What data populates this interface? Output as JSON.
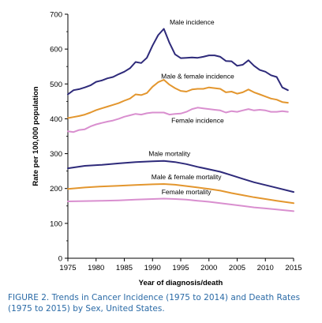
{
  "caption": {
    "figure": "FIGURE 2.",
    "text": "Trends in Cancer Incidence (1975 to 2014) and Death Rates (1975 to 2015) by Sex, United States."
  },
  "chart_data": {
    "type": "line",
    "title": "",
    "xlabel": "Year of diagnosis/death",
    "ylabel": "Rate per 100,000 population",
    "xlim": [
      1975,
      2015
    ],
    "ylim": [
      0,
      700
    ],
    "xticks": [
      1975,
      1980,
      1985,
      1990,
      1995,
      2000,
      2005,
      2010,
      2015
    ],
    "yticks": [
      0,
      100,
      200,
      300,
      400,
      500,
      600,
      700
    ],
    "grid": false,
    "series": [
      {
        "name": "Male incidence",
        "color": "#2e2a7a",
        "x": [
          1975,
          1976,
          1977,
          1978,
          1979,
          1980,
          1981,
          1982,
          1983,
          1984,
          1985,
          1986,
          1987,
          1988,
          1989,
          1990,
          1991,
          1992,
          1993,
          1994,
          1995,
          1996,
          1997,
          1998,
          1999,
          2000,
          2001,
          2002,
          2003,
          2004,
          2005,
          2006,
          2007,
          2008,
          2009,
          2010,
          2011,
          2012,
          2013,
          2014
        ],
        "y": [
          470,
          482,
          485,
          490,
          496,
          506,
          510,
          516,
          520,
          528,
          535,
          545,
          563,
          560,
          575,
          610,
          640,
          658,
          618,
          585,
          574,
          575,
          576,
          575,
          578,
          582,
          582,
          578,
          566,
          565,
          552,
          555,
          568,
          552,
          540,
          535,
          525,
          520,
          490,
          482
        ]
      },
      {
        "name": "Male & female incidence",
        "color": "#e3962e",
        "x": [
          1975,
          1976,
          1977,
          1978,
          1979,
          1980,
          1981,
          1982,
          1983,
          1984,
          1985,
          1986,
          1987,
          1988,
          1989,
          1990,
          1991,
          1992,
          1993,
          1994,
          1995,
          1996,
          1997,
          1998,
          1999,
          2000,
          2001,
          2002,
          2003,
          2004,
          2005,
          2006,
          2007,
          2008,
          2009,
          2010,
          2011,
          2012,
          2013,
          2014
        ],
        "y": [
          402,
          405,
          408,
          412,
          418,
          425,
          430,
          435,
          440,
          445,
          452,
          458,
          470,
          468,
          474,
          492,
          505,
          512,
          498,
          488,
          480,
          478,
          484,
          486,
          486,
          490,
          488,
          486,
          476,
          478,
          472,
          476,
          484,
          476,
          470,
          464,
          458,
          455,
          448,
          446
        ]
      },
      {
        "name": "Female incidence",
        "color": "#d98fcf",
        "x": [
          1975,
          1976,
          1977,
          1978,
          1979,
          1980,
          1981,
          1982,
          1983,
          1984,
          1985,
          1986,
          1987,
          1988,
          1989,
          1990,
          1991,
          1992,
          1993,
          1994,
          1995,
          1996,
          1997,
          1998,
          1999,
          2000,
          2001,
          2002,
          2003,
          2004,
          2005,
          2006,
          2007,
          2008,
          2009,
          2010,
          2011,
          2012,
          2013,
          2014
        ],
        "y": [
          364,
          362,
          368,
          370,
          378,
          384,
          388,
          392,
          395,
          400,
          406,
          410,
          414,
          412,
          416,
          418,
          418,
          418,
          412,
          414,
          415,
          420,
          428,
          432,
          430,
          428,
          426,
          424,
          418,
          422,
          420,
          424,
          428,
          424,
          426,
          424,
          420,
          420,
          422,
          420
        ]
      },
      {
        "name": "Male mortality",
        "color": "#2e2a7a",
        "x": [
          1975,
          1978,
          1981,
          1984,
          1987,
          1990,
          1992,
          1994,
          1996,
          1998,
          2000,
          2002,
          2004,
          2006,
          2008,
          2010,
          2012,
          2015
        ],
        "y": [
          258,
          265,
          268,
          272,
          276,
          278,
          279,
          276,
          270,
          262,
          255,
          248,
          238,
          228,
          218,
          210,
          202,
          190
        ]
      },
      {
        "name": "Male & female mortality",
        "color": "#e3962e",
        "x": [
          1975,
          1978,
          1981,
          1984,
          1987,
          1990,
          1992,
          1994,
          1996,
          1998,
          2000,
          2002,
          2004,
          2006,
          2008,
          2010,
          2012,
          2015
        ],
        "y": [
          199,
          203,
          206,
          208,
          210,
          212,
          213,
          211,
          207,
          203,
          199,
          194,
          187,
          181,
          175,
          170,
          165,
          158
        ]
      },
      {
        "name": "Female mortality",
        "color": "#d98fcf",
        "x": [
          1975,
          1978,
          1981,
          1984,
          1987,
          1990,
          1992,
          1994,
          1996,
          1998,
          2000,
          2002,
          2004,
          2006,
          2008,
          2010,
          2012,
          2015
        ],
        "y": [
          163,
          164,
          165,
          166,
          168,
          170,
          171,
          170,
          168,
          165,
          162,
          158,
          154,
          150,
          146,
          143,
          140,
          135
        ]
      }
    ],
    "annotations": [
      {
        "text": "Male incidence",
        "x": 1997,
        "y": 670
      },
      {
        "text": "Male & female incidence",
        "x": 1998,
        "y": 515
      },
      {
        "text": "Female incidence",
        "x": 1998,
        "y": 388
      },
      {
        "text": "Male mortality",
        "x": 1993,
        "y": 293
      },
      {
        "text": "Male & female mortality",
        "x": 1996,
        "y": 226
      },
      {
        "text": "Female mortality",
        "x": 1996,
        "y": 183
      }
    ]
  }
}
